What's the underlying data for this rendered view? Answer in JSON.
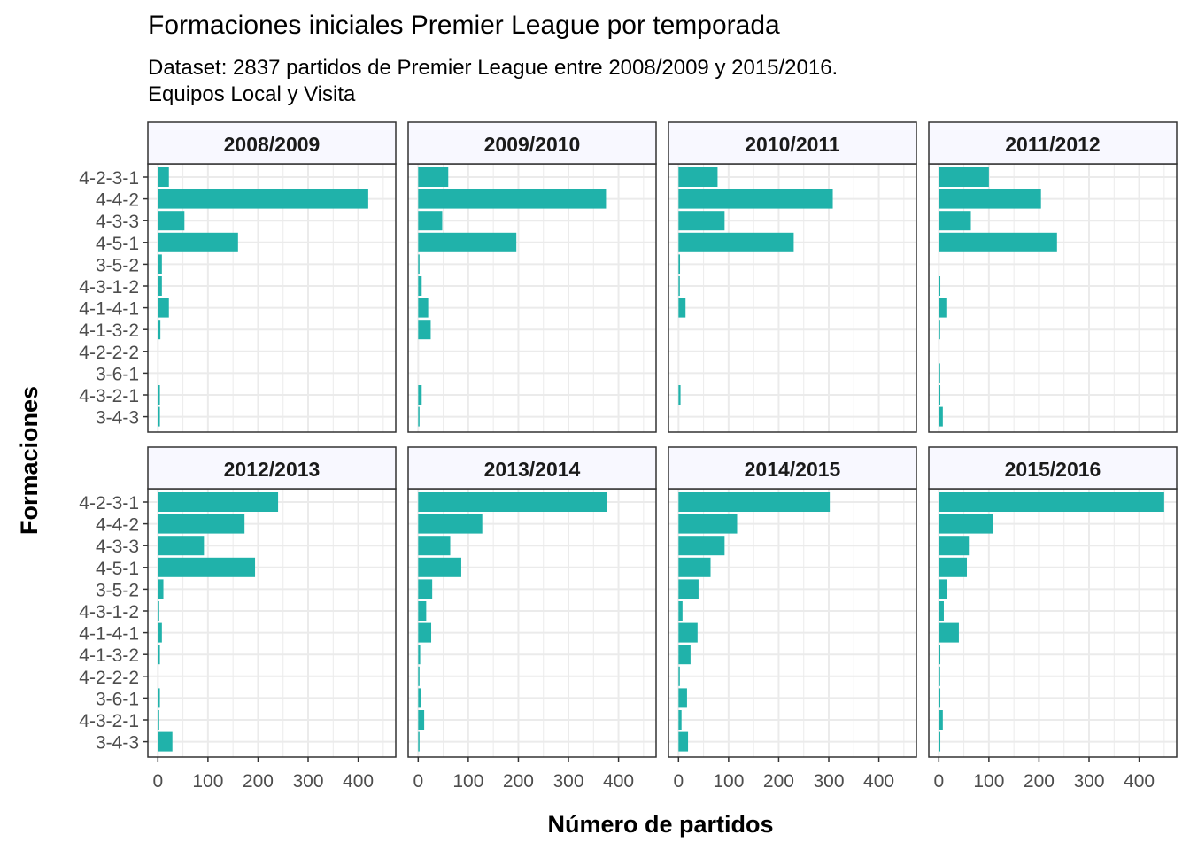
{
  "title": "Formaciones iniciales Premier League por temporada",
  "subtitle_line1": "Dataset: 2837 partidos de Premier League entre 2008/2009 y 2015/2016.",
  "subtitle_line2": "Equipos Local y Visita",
  "colors": {
    "bar": "#20B2AA",
    "strip": "#F8F8FF",
    "grid": "#EBEBEB",
    "border": "#333333",
    "axis_text": "#4D4D4D"
  },
  "chart_data": {
    "type": "bar",
    "orientation": "horizontal",
    "facet_layout": "2 rows x 4 columns",
    "xlabel": "Número de partidos",
    "ylabel": "Formaciones",
    "xlim": [
      -20,
      475
    ],
    "x_ticks": [
      0,
      100,
      200,
      300,
      400
    ],
    "grid": true,
    "categories": [
      "4-2-3-1",
      "4-4-2",
      "4-3-3",
      "4-5-1",
      "3-5-2",
      "4-3-1-2",
      "4-1-4-1",
      "4-1-3-2",
      "4-2-2-2",
      "3-6-1",
      "4-3-2-1",
      "3-4-3"
    ],
    "panels": [
      {
        "season": "2008/2009",
        "values": [
          22,
          420,
          53,
          160,
          8,
          8,
          22,
          5,
          0,
          0,
          4,
          4
        ]
      },
      {
        "season": "2009/2010",
        "values": [
          60,
          375,
          48,
          196,
          2,
          7,
          20,
          25,
          0,
          0,
          7,
          2
        ]
      },
      {
        "season": "2010/2011",
        "values": [
          78,
          308,
          92,
          230,
          3,
          2,
          14,
          0,
          0,
          0,
          4,
          0
        ]
      },
      {
        "season": "2011/2012",
        "values": [
          100,
          204,
          64,
          236,
          0,
          3,
          15,
          2,
          0,
          2,
          3,
          8
        ]
      },
      {
        "season": "2012/2013",
        "values": [
          240,
          173,
          92,
          194,
          11,
          2,
          8,
          4,
          0,
          4,
          2,
          29
        ]
      },
      {
        "season": "2013/2014",
        "values": [
          376,
          128,
          64,
          86,
          28,
          16,
          26,
          4,
          2,
          6,
          12,
          2
        ]
      },
      {
        "season": "2014/2015",
        "values": [
          302,
          117,
          92,
          64,
          40,
          8,
          38,
          24,
          2,
          17,
          6,
          19
        ]
      },
      {
        "season": "2015/2016",
        "values": [
          450,
          109,
          60,
          56,
          16,
          10,
          40,
          3,
          2,
          3,
          8,
          3
        ]
      }
    ]
  }
}
